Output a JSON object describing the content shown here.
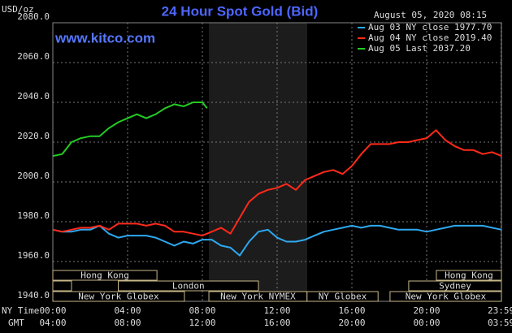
{
  "chart_data": {
    "type": "line",
    "title": "24 Hour Spot Gold (Bid)",
    "y_label": "USD/oz",
    "watermark": "www.kitco.com",
    "timestamp": "August 05, 2020 08:15",
    "x_label": "NY Time",
    "x2_label": "GMT",
    "grid": true,
    "xlim": [
      0,
      24
    ],
    "ylim": [
      1940,
      2080
    ],
    "yticks": [
      {
        "value": 1940,
        "label": "1940.0"
      },
      {
        "value": 1960,
        "label": "1960.0"
      },
      {
        "value": 1980,
        "label": "1980.0"
      },
      {
        "value": 2000,
        "label": "2000.0"
      },
      {
        "value": 2020,
        "label": "2020.0"
      },
      {
        "value": 2040,
        "label": "2040.0"
      },
      {
        "value": 2060,
        "label": "2060.0"
      },
      {
        "value": 2080,
        "label": "2080.0"
      }
    ],
    "xticks": [
      {
        "value": 0,
        "label": "00:00"
      },
      {
        "value": 4,
        "label": "04:00"
      },
      {
        "value": 8,
        "label": "08:00"
      },
      {
        "value": 12,
        "label": "12:00"
      },
      {
        "value": 16,
        "label": "16:00"
      },
      {
        "value": 20,
        "label": "20:00"
      },
      {
        "value": 23.98,
        "label": "23:59"
      }
    ],
    "xticks_gmt": [
      "04:00",
      "08:00",
      "12:00",
      "16:00",
      "20:00",
      "00:00",
      "03:59"
    ],
    "x": [
      0,
      0.5,
      1,
      1.5,
      2,
      2.5,
      3,
      3.5,
      4,
      4.5,
      5,
      5.5,
      6,
      6.5,
      7,
      7.5,
      8,
      8.5,
      9,
      9.5,
      10,
      10.5,
      11,
      11.5,
      12,
      12.5,
      13,
      13.5,
      14,
      14.5,
      15,
      15.5,
      16,
      16.5,
      17,
      17.5,
      18,
      18.5,
      19,
      19.5,
      20,
      20.5,
      21,
      21.5,
      22,
      22.5,
      23,
      23.5,
      24
    ],
    "series": [
      {
        "name": "Aug 03 NY close 1977.70",
        "color": "#2ea8f0",
        "values": [
          1976,
          1975,
          1975,
          1976,
          1976,
          1978,
          1974,
          1972,
          1973,
          1973,
          1973,
          1972,
          1970,
          1968,
          1970,
          1969,
          1971,
          1971,
          1968,
          1967,
          1963,
          1970,
          1975,
          1976,
          1972,
          1970,
          1970,
          1971,
          1973,
          1975,
          1976,
          1977,
          1978,
          1977,
          1978,
          1978,
          1977,
          1976,
          1976,
          1976,
          1975,
          1976,
          1977,
          1978,
          1978,
          1978,
          1978,
          1977,
          1976
        ]
      },
      {
        "name": "Aug 04 NY close 2019.40",
        "color": "#ff2a1a",
        "values": [
          1976,
          1975,
          1976,
          1977,
          1977,
          1978,
          1976,
          1979,
          1979,
          1979,
          1978,
          1979,
          1978,
          1975,
          1975,
          1974,
          1973,
          1975,
          1977,
          1974,
          1982,
          1990,
          1994,
          1996,
          1997,
          1999,
          1996,
          2001,
          2003,
          2005,
          2006,
          2004,
          2008,
          2014,
          2019,
          2019,
          2019,
          2020,
          2020,
          2021,
          2022,
          2026,
          2021,
          2018,
          2016,
          2016,
          2014,
          2015,
          2013
        ]
      },
      {
        "name": "Aug 05 Last 2037.20",
        "color": "#22cc22",
        "x": [
          0,
          0.5,
          1,
          1.5,
          2,
          2.5,
          3,
          3.5,
          4,
          4.5,
          5,
          5.5,
          6,
          6.5,
          7,
          7.5,
          8,
          8.25
        ],
        "values": [
          2013,
          2014,
          2020,
          2022,
          2023,
          2023,
          2027,
          2030,
          2032,
          2034,
          2032,
          2034,
          2037,
          2039,
          2038,
          2040,
          2040,
          2037
        ]
      }
    ],
    "session_rows": [
      [
        {
          "label": "Hong Kong",
          "start": 0,
          "end": 5.57
        },
        {
          "label": "Hong Kong",
          "start": 20.52,
          "end": 24
        }
      ],
      [
        {
          "label": null,
          "start": 0,
          "end": 1
        },
        {
          "label": "London",
          "start": 3.5,
          "end": 11
        },
        {
          "label": "Sydney",
          "start": 19.04,
          "end": 24
        }
      ],
      [
        {
          "label": "New York Globex",
          "start": 0,
          "end": 7.04
        },
        {
          "label": "New York NYMEX",
          "start": 8.35,
          "end": 13.6
        },
        {
          "label": "NY Globex",
          "start": 13.6,
          "end": 17.4
        },
        {
          "label": "New York Globex",
          "start": 18.04,
          "end": 24
        }
      ]
    ]
  }
}
